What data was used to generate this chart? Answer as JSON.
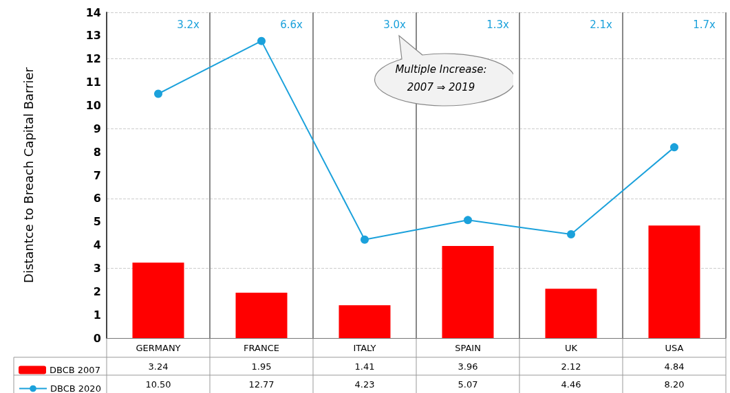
{
  "chart_data": {
    "type": "bar",
    "ylabel": "Distantce to Breach Capital Barrier",
    "categories": [
      "GERMANY",
      "FRANCE",
      "ITALY",
      "SPAIN",
      "UK",
      "USA"
    ],
    "series": [
      {
        "name": "DBCB 2007",
        "color": "#ff0000",
        "values": [
          3.24,
          1.95,
          1.41,
          3.96,
          2.12,
          4.84
        ],
        "value_labels": [
          "3.24",
          "1.95",
          "1.41",
          "3.96",
          "2.12",
          "4.84"
        ]
      },
      {
        "name": "DBCB 2020",
        "type": "line",
        "color": "#1ba1db",
        "marker": "circle",
        "values": [
          10.5,
          12.77,
          4.23,
          5.07,
          4.46,
          8.2
        ],
        "value_labels": [
          "10.50",
          "12.77",
          "4.23",
          "5.07",
          "4.46",
          "8.20"
        ]
      }
    ],
    "ylim": [
      0,
      14
    ],
    "yticks": [
      0,
      1,
      2,
      3,
      4,
      5,
      6,
      7,
      8,
      9,
      10,
      11,
      12,
      13,
      14
    ],
    "grid": true,
    "legend": "bottom",
    "annotations": [
      "3.2x",
      "6.6x",
      "3.0x",
      "1.3x",
      "2.1x",
      "1.7x",
      "Multiple Increase:\n2007 ⇒ 2019"
    ]
  }
}
